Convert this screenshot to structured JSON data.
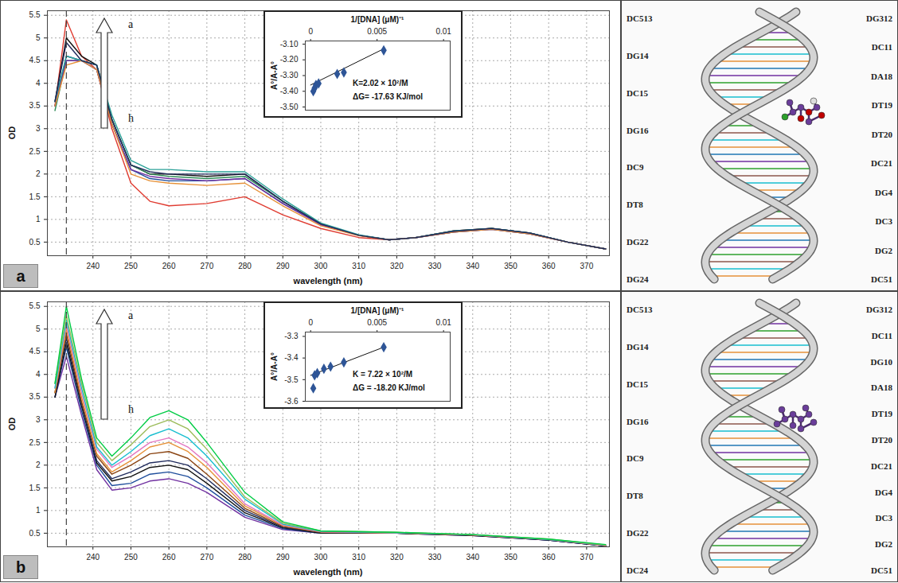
{
  "chart_data": [
    {
      "type": "line",
      "x_label": "wavelength (nm)",
      "y_label": "OD",
      "x": [
        230,
        233,
        237,
        241,
        245,
        250,
        255,
        260,
        270,
        280,
        290,
        300,
        310,
        318,
        325,
        335,
        345,
        355,
        365,
        375
      ],
      "series": [
        {
          "color": "#e03c31",
          "values": [
            3.5,
            5.4,
            4.6,
            4.3,
            3.0,
            1.8,
            1.4,
            1.3,
            1.35,
            1.5,
            1.1,
            0.8,
            0.6,
            0.55,
            0.6,
            0.75,
            0.8,
            0.7,
            0.5,
            0.35
          ]
        },
        {
          "color": "#111111",
          "values": [
            3.6,
            5.0,
            4.6,
            4.4,
            3.2,
            2.2,
            2.0,
            2.0,
            1.95,
            2.0,
            1.4,
            0.9,
            0.65,
            0.55,
            0.6,
            0.75,
            0.8,
            0.7,
            0.5,
            0.35
          ]
        },
        {
          "color": "#1f4e9c",
          "values": [
            3.5,
            4.6,
            4.5,
            4.3,
            3.1,
            2.1,
            1.9,
            1.85,
            1.85,
            1.9,
            1.35,
            0.9,
            0.65,
            0.55,
            0.6,
            0.72,
            0.78,
            0.68,
            0.5,
            0.35
          ]
        },
        {
          "color": "#2e8b57",
          "values": [
            3.4,
            4.5,
            4.5,
            4.4,
            3.2,
            2.2,
            2.0,
            1.95,
            1.9,
            1.95,
            1.4,
            0.9,
            0.65,
            0.55,
            0.6,
            0.73,
            0.8,
            0.7,
            0.5,
            0.35
          ]
        },
        {
          "color": "#7030a0",
          "values": [
            3.5,
            4.5,
            4.5,
            4.3,
            3.1,
            2.1,
            1.95,
            1.9,
            1.85,
            1.9,
            1.35,
            0.88,
            0.65,
            0.55,
            0.6,
            0.72,
            0.78,
            0.68,
            0.5,
            0.35
          ]
        },
        {
          "color": "#2aa198",
          "values": [
            3.6,
            4.6,
            4.5,
            4.4,
            3.3,
            2.3,
            2.1,
            2.1,
            2.05,
            2.05,
            1.45,
            0.92,
            0.66,
            0.55,
            0.6,
            0.75,
            0.8,
            0.7,
            0.5,
            0.35
          ]
        },
        {
          "color": "#e69138",
          "values": [
            3.5,
            4.4,
            4.5,
            4.3,
            3.1,
            2.0,
            1.85,
            1.8,
            1.75,
            1.8,
            1.3,
            0.86,
            0.64,
            0.55,
            0.6,
            0.72,
            0.78,
            0.68,
            0.5,
            0.35
          ]
        },
        {
          "color": "#1f2a5c",
          "values": [
            3.6,
            4.9,
            4.5,
            4.4,
            3.2,
            2.2,
            2.05,
            2.0,
            2.0,
            2.0,
            1.4,
            0.9,
            0.65,
            0.55,
            0.6,
            0.74,
            0.8,
            0.7,
            0.5,
            0.35
          ]
        }
      ],
      "xlim": [
        228,
        376
      ],
      "xticks": [
        240,
        250,
        260,
        270,
        280,
        290,
        300,
        310,
        320,
        330,
        340,
        350,
        360,
        370
      ],
      "ylim": [
        0.2,
        5.6
      ],
      "yticks": [
        0.5,
        1,
        1.5,
        2,
        2.5,
        3,
        3.5,
        4,
        4.5,
        5,
        5.5
      ],
      "grid": true,
      "reference_x": 233,
      "annotations": [
        "a",
        "h"
      ]
    },
    {
      "type": "scatter",
      "x_label": "1/[DNA] (μM)⁻¹",
      "y_label": "A°/A-A°",
      "x": [
        0.0002,
        0.0003,
        0.0004,
        0.0006,
        0.002,
        0.0025,
        0.0055
      ],
      "values": [
        -3.4,
        -3.38,
        -3.36,
        -3.35,
        -3.29,
        -3.28,
        -3.14
      ],
      "color": "#2e5597",
      "marker": "diamond",
      "fit": {
        "x": [
          0,
          0.0055
        ],
        "values": [
          -3.36,
          -3.13
        ]
      },
      "xlim": [
        -0.0004,
        0.0105
      ],
      "xticks": [
        0,
        0.005,
        0.01
      ],
      "ylim": [
        -3.52,
        -3.08
      ],
      "yticks": [
        {
          "value": -3.1,
          "label": "-3.10"
        },
        {
          "value": -3.2,
          "label": "-3.20"
        },
        {
          "value": -3.3,
          "label": "-3.30"
        },
        {
          "value": -3.4,
          "label": "-3.40"
        },
        {
          "value": -3.5,
          "label": "-3.50"
        }
      ],
      "annotations": [
        "K=2.02 × 10²/M",
        "ΔG= -17.63 KJ/mol"
      ]
    },
    {
      "type": "line",
      "x_label": "wavelength (nm)",
      "y_label": "OD",
      "x": [
        230,
        233,
        237,
        241,
        245,
        250,
        255,
        260,
        265,
        270,
        280,
        290,
        300,
        320,
        340,
        360,
        375
      ],
      "series": [
        {
          "color": "#7030a0",
          "values": [
            3.5,
            4.4,
            3.1,
            1.9,
            1.45,
            1.5,
            1.65,
            1.7,
            1.6,
            1.4,
            0.85,
            0.58,
            0.5,
            0.5,
            0.45,
            0.35,
            0.22
          ]
        },
        {
          "color": "#1f4e9c",
          "values": [
            3.5,
            4.6,
            3.2,
            2.0,
            1.55,
            1.6,
            1.8,
            1.85,
            1.75,
            1.5,
            0.9,
            0.6,
            0.5,
            0.5,
            0.45,
            0.35,
            0.22
          ]
        },
        {
          "color": "#111111",
          "values": [
            3.5,
            4.7,
            3.3,
            2.05,
            1.65,
            1.75,
            1.95,
            2.0,
            1.9,
            1.6,
            0.95,
            0.62,
            0.5,
            0.5,
            0.45,
            0.35,
            0.22
          ]
        },
        {
          "color": "#1f2a5c",
          "values": [
            3.6,
            4.8,
            3.35,
            2.1,
            1.7,
            1.85,
            2.05,
            2.1,
            2.0,
            1.7,
            1.0,
            0.63,
            0.52,
            0.5,
            0.46,
            0.35,
            0.22
          ]
        },
        {
          "color": "#8b4513",
          "values": [
            3.6,
            4.9,
            3.4,
            2.2,
            1.8,
            2.0,
            2.25,
            2.3,
            2.15,
            1.8,
            1.05,
            0.65,
            0.52,
            0.5,
            0.46,
            0.36,
            0.23
          ]
        },
        {
          "color": "#e69138",
          "values": [
            3.6,
            5.0,
            3.5,
            2.25,
            1.85,
            2.1,
            2.4,
            2.5,
            2.3,
            1.95,
            1.1,
            0.67,
            0.53,
            0.51,
            0.46,
            0.36,
            0.23
          ]
        },
        {
          "color": "#e377c2",
          "values": [
            3.7,
            5.1,
            3.6,
            2.35,
            1.95,
            2.2,
            2.5,
            2.6,
            2.4,
            2.05,
            1.15,
            0.68,
            0.53,
            0.51,
            0.46,
            0.36,
            0.23
          ]
        },
        {
          "color": "#17becf",
          "values": [
            3.7,
            5.2,
            3.7,
            2.4,
            2.0,
            2.3,
            2.65,
            2.8,
            2.6,
            2.2,
            1.25,
            0.7,
            0.54,
            0.51,
            0.47,
            0.36,
            0.24
          ]
        },
        {
          "color": "#9bbb59",
          "values": [
            3.8,
            5.3,
            3.8,
            2.5,
            2.1,
            2.45,
            2.85,
            3.0,
            2.8,
            2.35,
            1.3,
            0.72,
            0.55,
            0.52,
            0.47,
            0.37,
            0.24
          ]
        },
        {
          "color": "#00cc44",
          "values": [
            3.8,
            5.5,
            3.9,
            2.6,
            2.2,
            2.6,
            3.05,
            3.2,
            3.0,
            2.5,
            1.4,
            0.75,
            0.55,
            0.52,
            0.47,
            0.37,
            0.25
          ]
        }
      ],
      "xlim": [
        228,
        376
      ],
      "xticks": [
        240,
        250,
        260,
        270,
        280,
        290,
        300,
        310,
        320,
        330,
        340,
        350,
        360,
        370
      ],
      "ylim": [
        0.2,
        5.6
      ],
      "yticks": [
        0.5,
        1,
        1.5,
        2,
        2.5,
        3,
        3.5,
        4,
        4.5,
        5,
        5.5
      ],
      "grid": true,
      "reference_x": 233,
      "annotations": [
        "a",
        "h"
      ]
    },
    {
      "type": "scatter",
      "x_label": "1/[DNA] (μM)⁻¹",
      "y_label": "A°/A-A°",
      "x": [
        0.0002,
        0.0003,
        0.0005,
        0.001,
        0.0015,
        0.0025,
        0.0055
      ],
      "values": [
        -3.54,
        -3.48,
        -3.47,
        -3.45,
        -3.44,
        -3.42,
        -3.35
      ],
      "color": "#2e5597",
      "marker": "diamond",
      "fit": {
        "x": [
          0,
          0.0055
        ],
        "values": [
          -3.48,
          -3.35
        ]
      },
      "xlim": [
        -0.0004,
        0.0105
      ],
      "xticks": [
        0,
        0.005,
        0.01
      ],
      "ylim": [
        -3.6,
        -3.28
      ],
      "yticks": [
        -3.3,
        -3.4,
        -3.5,
        -3.6
      ],
      "annotations": [
        "K = 7.22 × 10²/M",
        "ΔG = -18.20 KJ/mol"
      ]
    }
  ],
  "panels": [
    {
      "letter": "a",
      "docking": {
        "left_strand": [
          "DC513",
          "DG14",
          "DC15",
          "DG16",
          "DC9",
          "DT8",
          "DG22",
          "DG24"
        ],
        "right_strand": [
          "DG312",
          "DC11",
          "DA18",
          "DT19",
          "DT20",
          "DC21",
          "DG4",
          "DC3",
          "DG2",
          "DC51"
        ]
      }
    },
    {
      "letter": "b",
      "docking": {
        "left_strand": [
          "DC513",
          "DG14",
          "DC15",
          "DG16",
          "DC9",
          "DT8",
          "DG22",
          "DC24"
        ],
        "right_strand": [
          "DG312",
          "DC11",
          "DG10",
          "DA18",
          "DT19",
          "DT20",
          "DC21",
          "DG4",
          "DC3",
          "DG2",
          "DC51"
        ]
      }
    }
  ]
}
